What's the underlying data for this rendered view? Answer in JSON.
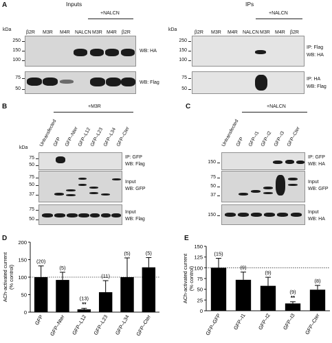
{
  "panelA": {
    "label": "A",
    "inputs_title": "Inputs",
    "ips_title": "IPs",
    "kda": "kDa",
    "group_label": "+NALCN",
    "lanes_inputs": [
      "β2R",
      "M3R",
      "M4R",
      "NALCN",
      "M3R",
      "M4R",
      "β2R"
    ],
    "lanes_ips": [
      "β2R",
      "M3R",
      "M4R",
      "NALCN",
      "M3R",
      "M4R",
      "β2R"
    ],
    "ticks_top": [
      "250",
      "150",
      "100"
    ],
    "ticks_bottom": [
      "75",
      "50"
    ],
    "wb_ha": "WB: HA",
    "wb_flag": "WB: Flag",
    "ip_flag": "IP: Flag",
    "ip_ha": "IP: HA"
  },
  "panelB": {
    "label": "B",
    "group_label": "+M3R",
    "kda": "kDa",
    "lanes": [
      "Untransfected",
      "GFP",
      "GFP–Nter",
      "GFP–L12",
      "GFP–L23",
      "GFP–L34",
      "GFP–Cter"
    ],
    "ticks_top": [
      "75",
      "50"
    ],
    "ticks_mid": [
      "75",
      "50",
      "37"
    ],
    "ticks_bottom": [
      "75",
      "50"
    ],
    "top_label_1": "IP: GFP",
    "top_label_2": "WB: Flag",
    "mid_label_1": "Input",
    "mid_label_2": "WB: GFP",
    "bot_label_1": "Input",
    "bot_label_2": "WB: Flag"
  },
  "panelC": {
    "label": "C",
    "group_label": "+NALCN",
    "lanes": [
      "Untransfected",
      "GFP",
      "GFP–I1",
      "GFP–I2",
      "GFP–I3",
      "GFP–Cter"
    ],
    "ticks_top": [
      "150"
    ],
    "ticks_mid": [
      "75",
      "50",
      "37"
    ],
    "ticks_bottom": [
      "150"
    ],
    "top_label_1": "IP: GFP",
    "top_label_2": "WB: HA",
    "mid_label_1": "Input",
    "mid_label_2": "WB: GFP",
    "bot_label_1": "Input",
    "bot_label_2": "WB: HA"
  },
  "panelD": {
    "label": "D",
    "ylabel_1": "ACh-activated current",
    "ylabel_2": "(% control)",
    "significance": "**",
    "yticks": [
      "0",
      "50",
      "100",
      "150",
      "200"
    ]
  },
  "panelE": {
    "label": "E",
    "ylabel_1": "ACh-activated current",
    "ylabel_2": "(% control)",
    "significance": "**",
    "yticks": [
      "0",
      "25",
      "50",
      "75",
      "100",
      "125",
      "150"
    ]
  },
  "chart_data": [
    {
      "type": "bar",
      "categories": [
        "GFP",
        "GFP–Nter",
        "GFP–L12",
        "GFP–L23",
        "GFP–L34",
        "GFP–Cter"
      ],
      "values": [
        100,
        92,
        8,
        57,
        100,
        128
      ],
      "errors": [
        32,
        22,
        3,
        33,
        55,
        28
      ],
      "n_labels": [
        "(20)",
        "(5)",
        "(13)",
        "(11)",
        "(5)",
        "(5)"
      ],
      "significant": [
        false,
        false,
        true,
        false,
        false,
        false
      ],
      "ylabel": "ACh-activated current (% control)",
      "ylim": [
        0,
        200
      ],
      "reference_line": 100
    },
    {
      "type": "bar",
      "categories": [
        "GFP–GFP",
        "GFP–I1",
        "GFP–I2",
        "GFP–I3",
        "GFP–Cter"
      ],
      "values": [
        100,
        72,
        58,
        17,
        49
      ],
      "errors": [
        22,
        18,
        20,
        4,
        10
      ],
      "n_labels": [
        "(15)",
        "(9)",
        "(9)",
        "(9)",
        "(8)"
      ],
      "significant": [
        false,
        false,
        false,
        true,
        false
      ],
      "ylabel": "ACh-activated current (% control)",
      "ylim": [
        0,
        150
      ],
      "reference_line": 100
    }
  ]
}
